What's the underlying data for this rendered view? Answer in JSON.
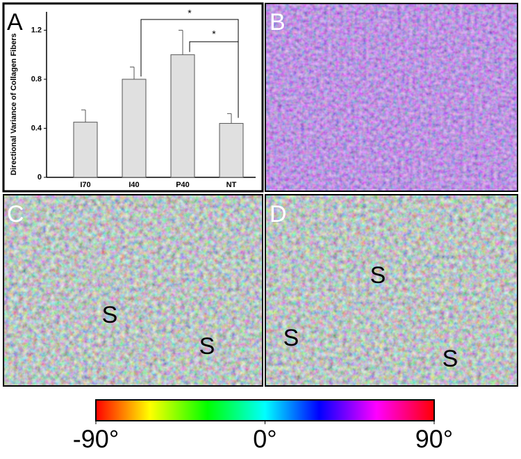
{
  "chart_data": {
    "type": "bar",
    "ylabel": "Directional Variance of Collagen Fibers",
    "categories": [
      "I70",
      "I40",
      "P40",
      "NT"
    ],
    "values": [
      0.45,
      0.8,
      1.0,
      0.44
    ],
    "errors": [
      0.1,
      0.1,
      0.2,
      0.08
    ],
    "color": "#e0e0e0",
    "ylim": [
      0,
      1.35
    ],
    "yticks": [
      0,
      0.4,
      0.8,
      1.2
    ],
    "annotations": [
      "*",
      "*"
    ]
  },
  "panels": [
    "A",
    "B",
    "C",
    "D"
  ],
  "panel_marks": {
    "C": [
      "S",
      "S"
    ],
    "D": [
      "S",
      "S",
      "S"
    ]
  },
  "colorbar": {
    "lim": [
      -90,
      90
    ],
    "ticks": [
      {
        "value": -90,
        "label": "-90°"
      },
      {
        "value": 0,
        "label": "0°"
      },
      {
        "value": 90,
        "label": "90°"
      }
    ]
  }
}
